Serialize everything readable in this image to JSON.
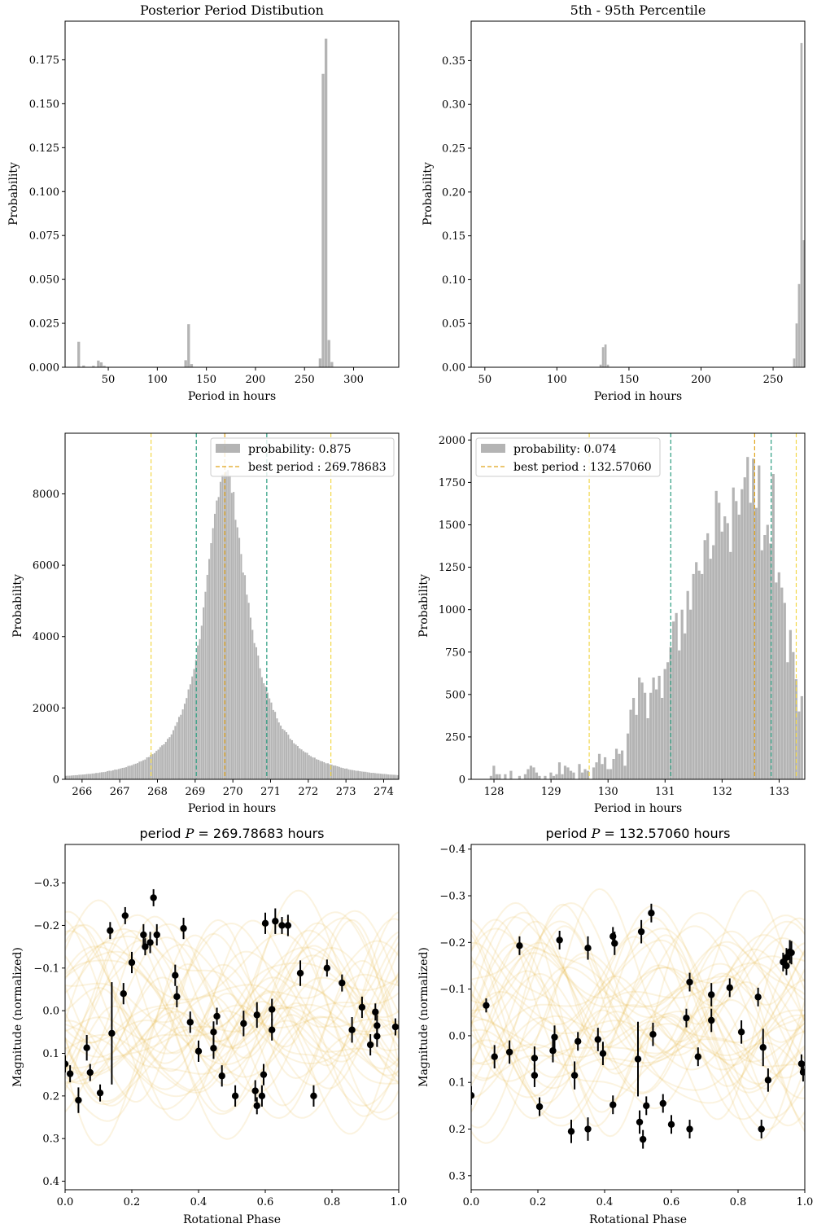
{
  "chart_data": [
    {
      "id": "p1",
      "type": "bar",
      "title": "Posterior Period Distibution",
      "xlabel": "Period in hours",
      "ylabel": "Probability",
      "xlim": [
        6,
        346
      ],
      "ylim": [
        0,
        0.197
      ],
      "xticks": [
        50,
        100,
        150,
        200,
        250,
        300
      ],
      "yticks": [
        0,
        0.025,
        0.05,
        0.075,
        0.1,
        0.125,
        0.15,
        0.175
      ],
      "ytick_labels": [
        "0.000",
        "0.025",
        "0.050",
        "0.075",
        "0.100",
        "0.125",
        "0.150",
        "0.175"
      ],
      "bin_width": 3.0,
      "bins": [
        [
          20,
          0.0145
        ],
        [
          25,
          0.001
        ],
        [
          35,
          0.0008
        ],
        [
          40,
          0.0038
        ],
        [
          43,
          0.0028
        ],
        [
          46,
          0.0008
        ],
        [
          129,
          0.004
        ],
        [
          132,
          0.0245
        ],
        [
          135,
          0.0018
        ],
        [
          266,
          0.005
        ],
        [
          269,
          0.167
        ],
        [
          272,
          0.187
        ],
        [
          275,
          0.0155
        ],
        [
          278,
          0.003
        ]
      ]
    },
    {
      "id": "p2",
      "type": "bar",
      "title": "5th - 95th Percentile",
      "xlabel": "Period in hours",
      "ylabel": "Probability",
      "xlim": [
        40.5,
        272
      ],
      "ylim": [
        0,
        0.395
      ],
      "xticks": [
        50,
        100,
        150,
        200,
        250
      ],
      "yticks": [
        0,
        0.05,
        0.1,
        0.15,
        0.2,
        0.25,
        0.3,
        0.35
      ],
      "ytick_labels": [
        "0.00",
        "0.05",
        "0.10",
        "0.15",
        "0.20",
        "0.25",
        "0.30",
        "0.35"
      ],
      "bin_width": 1.7,
      "bins": [
        [
          130.4,
          0.003
        ],
        [
          132.1,
          0.023
        ],
        [
          133.8,
          0.026
        ],
        [
          135.5,
          0.003
        ],
        [
          264.7,
          0.01
        ],
        [
          266.4,
          0.05
        ],
        [
          268.1,
          0.095
        ],
        [
          269.8,
          0.37
        ],
        [
          271.5,
          0.145
        ]
      ]
    },
    {
      "id": "p3",
      "type": "bar",
      "title": "",
      "xlabel": "Period in hours",
      "ylabel": "Probability",
      "xlim": [
        265.55,
        274.4
      ],
      "ylim": [
        0,
        9700
      ],
      "xticks": [
        266,
        267,
        268,
        269,
        270,
        271,
        272,
        273,
        274
      ],
      "yticks": [
        0,
        2000,
        4000,
        6000,
        8000
      ],
      "bin_width": 0.05,
      "peak": 269.78683,
      "peak_value": 8700,
      "legend": {
        "position": "upper right",
        "bar_label": "probability: 0.875",
        "line_label": "best period : 269.78683"
      },
      "vlines": [
        {
          "x": 267.83,
          "color": "#f2d84a"
        },
        {
          "x": 269.03,
          "color": "#2a9d80"
        },
        {
          "x": 269.78683,
          "color": "#e0a319"
        },
        {
          "x": 270.9,
          "color": "#2a9d80"
        },
        {
          "x": 272.6,
          "color": "#f2d84a"
        }
      ]
    },
    {
      "id": "p4",
      "type": "bar",
      "title": "",
      "xlabel": "Period in hours",
      "ylabel": "Probability",
      "xlim": [
        127.6,
        133.45
      ],
      "ylim": [
        0,
        2040
      ],
      "xticks": [
        128,
        129,
        130,
        131,
        132,
        133
      ],
      "yticks": [
        0,
        250,
        500,
        750,
        1000,
        1250,
        1500,
        1750,
        2000
      ],
      "bin_width": 0.05,
      "legend": {
        "position": "upper left",
        "bar_label": "probability: 0.074",
        "line_label": "best period : 132.57060"
      },
      "bins": [
        [
          127.95,
          20
        ],
        [
          128.0,
          80
        ],
        [
          128.05,
          30
        ],
        [
          128.1,
          30
        ],
        [
          128.2,
          30
        ],
        [
          128.3,
          50
        ],
        [
          128.45,
          20
        ],
        [
          128.55,
          30
        ],
        [
          128.6,
          60
        ],
        [
          128.65,
          80
        ],
        [
          128.7,
          70
        ],
        [
          128.75,
          40
        ],
        [
          128.8,
          20
        ],
        [
          128.9,
          20
        ],
        [
          129.0,
          40
        ],
        [
          129.05,
          20
        ],
        [
          129.1,
          30
        ],
        [
          129.15,
          100
        ],
        [
          129.2,
          30
        ],
        [
          129.25,
          80
        ],
        [
          129.3,
          70
        ],
        [
          129.35,
          50
        ],
        [
          129.4,
          40
        ],
        [
          129.5,
          90
        ],
        [
          129.55,
          40
        ],
        [
          129.6,
          60
        ],
        [
          129.65,
          50
        ],
        [
          129.75,
          70
        ],
        [
          129.8,
          100
        ],
        [
          129.85,
          150
        ],
        [
          129.9,
          90
        ],
        [
          129.95,
          130
        ],
        [
          130.0,
          60
        ],
        [
          130.05,
          60
        ],
        [
          130.1,
          120
        ],
        [
          130.15,
          180
        ],
        [
          130.2,
          150
        ],
        [
          130.25,
          170
        ],
        [
          130.3,
          80
        ],
        [
          130.35,
          270
        ],
        [
          130.4,
          410
        ],
        [
          130.45,
          480
        ],
        [
          130.5,
          380
        ],
        [
          130.55,
          600
        ],
        [
          130.6,
          570
        ],
        [
          130.65,
          510
        ],
        [
          130.7,
          360
        ],
        [
          130.75,
          510
        ],
        [
          130.8,
          600
        ],
        [
          130.85,
          530
        ],
        [
          130.9,
          610
        ],
        [
          130.95,
          480
        ],
        [
          131.0,
          650
        ],
        [
          131.05,
          690
        ],
        [
          131.1,
          780
        ],
        [
          131.15,
          930
        ],
        [
          131.2,
          980
        ],
        [
          131.25,
          760
        ],
        [
          131.3,
          1000
        ],
        [
          131.35,
          860
        ],
        [
          131.4,
          1110
        ],
        [
          131.45,
          1000
        ],
        [
          131.5,
          1210
        ],
        [
          131.55,
          1280
        ],
        [
          131.6,
          1230
        ],
        [
          131.65,
          1210
        ],
        [
          131.7,
          1410
        ],
        [
          131.75,
          1450
        ],
        [
          131.8,
          1300
        ],
        [
          131.85,
          1380
        ],
        [
          131.9,
          1700
        ],
        [
          131.95,
          1630
        ],
        [
          132.0,
          1460
        ],
        [
          132.05,
          1550
        ],
        [
          132.1,
          1510
        ],
        [
          132.15,
          1340
        ],
        [
          132.2,
          1720
        ],
        [
          132.25,
          1640
        ],
        [
          132.3,
          1560
        ],
        [
          132.35,
          1710
        ],
        [
          132.4,
          1780
        ],
        [
          132.45,
          1900
        ],
        [
          132.5,
          1630
        ],
        [
          132.55,
          1890
        ],
        [
          132.6,
          1600
        ],
        [
          132.65,
          1850
        ],
        [
          132.7,
          1350
        ],
        [
          132.75,
          1440
        ],
        [
          132.8,
          1500
        ],
        [
          132.85,
          1390
        ],
        [
          132.9,
          1800
        ],
        [
          132.95,
          1160
        ],
        [
          133.0,
          1220
        ],
        [
          133.05,
          1130
        ],
        [
          133.1,
          1040
        ],
        [
          133.15,
          690
        ],
        [
          133.2,
          880
        ],
        [
          133.25,
          750
        ],
        [
          133.3,
          590
        ],
        [
          133.35,
          400
        ],
        [
          133.4,
          490
        ]
      ],
      "vlines": [
        {
          "x": 129.67,
          "color": "#f2d84a"
        },
        {
          "x": 131.1,
          "color": "#2a9d80"
        },
        {
          "x": 132.5706,
          "color": "#e0a319"
        },
        {
          "x": 132.86,
          "color": "#2a9d80"
        },
        {
          "x": 133.3,
          "color": "#f2d84a"
        }
      ]
    },
    {
      "id": "p5",
      "type": "scatter",
      "title_prefix": "period ",
      "title_var": "P",
      "title_rest": " = 269.78683 hours",
      "xlabel": "Rotational Phase",
      "ylabel": "Magnitude (normalized)",
      "xlim": [
        0,
        1
      ],
      "ylim": [
        0.42,
        -0.39
      ],
      "xticks": [
        0,
        0.2,
        0.4,
        0.6,
        0.8,
        1.0
      ],
      "xtick_labels": [
        "0.0",
        "0.2",
        "0.4",
        "0.6",
        "0.8",
        "1.0"
      ],
      "yticks": [
        -0.3,
        -0.2,
        -0.1,
        0.0,
        0.1,
        0.2,
        0.3,
        0.4
      ],
      "ytick_labels": [
        "−0.3",
        "−0.2",
        "−0.1",
        "0.0",
        "0.1",
        "0.2",
        "0.3",
        "0.4"
      ],
      "curve_count": 40,
      "curve_color": "#e8b33c",
      "points": [
        [
          0.0,
          0.125,
          0.02
        ],
        [
          0.015,
          0.148,
          0.02
        ],
        [
          0.04,
          0.21,
          0.03
        ],
        [
          0.065,
          0.087,
          0.03
        ],
        [
          0.075,
          0.145,
          0.02
        ],
        [
          0.105,
          0.193,
          0.02
        ],
        [
          0.135,
          -0.188,
          0.02
        ],
        [
          0.14,
          0.053,
          0.12
        ],
        [
          0.175,
          -0.04,
          0.025
        ],
        [
          0.18,
          -0.223,
          0.02
        ],
        [
          0.2,
          -0.113,
          0.025
        ],
        [
          0.235,
          -0.178,
          0.025
        ],
        [
          0.24,
          -0.15,
          0.02
        ],
        [
          0.255,
          -0.16,
          0.025
        ],
        [
          0.265,
          -0.265,
          0.02
        ],
        [
          0.275,
          -0.178,
          0.025
        ],
        [
          0.33,
          -0.083,
          0.025
        ],
        [
          0.335,
          -0.033,
          0.025
        ],
        [
          0.355,
          -0.193,
          0.025
        ],
        [
          0.375,
          0.027,
          0.025
        ],
        [
          0.4,
          0.095,
          0.025
        ],
        [
          0.445,
          0.05,
          0.025
        ],
        [
          0.445,
          0.088,
          0.025
        ],
        [
          0.455,
          0.013,
          0.02
        ],
        [
          0.47,
          0.153,
          0.025
        ],
        [
          0.51,
          0.2,
          0.025
        ],
        [
          0.535,
          0.03,
          0.03
        ],
        [
          0.57,
          0.188,
          0.025
        ],
        [
          0.575,
          0.223,
          0.02
        ],
        [
          0.575,
          0.01,
          0.03
        ],
        [
          0.59,
          0.2,
          0.025
        ],
        [
          0.595,
          0.15,
          0.025
        ],
        [
          0.6,
          -0.205,
          0.025
        ],
        [
          0.62,
          0.045,
          0.025
        ],
        [
          0.62,
          -0.003,
          0.025
        ],
        [
          0.63,
          -0.21,
          0.03
        ],
        [
          0.65,
          -0.2,
          0.02
        ],
        [
          0.668,
          -0.2,
          0.025
        ],
        [
          0.705,
          -0.088,
          0.03
        ],
        [
          0.745,
          0.2,
          0.025
        ],
        [
          0.785,
          -0.1,
          0.02
        ],
        [
          0.83,
          -0.065,
          0.02
        ],
        [
          0.86,
          0.045,
          0.03
        ],
        [
          0.89,
          -0.008,
          0.025
        ],
        [
          0.915,
          0.08,
          0.025
        ],
        [
          0.93,
          0.003,
          0.02
        ],
        [
          0.935,
          0.06,
          0.025
        ],
        [
          0.935,
          0.035,
          0.025
        ],
        [
          0.99,
          0.038,
          0.02
        ]
      ]
    },
    {
      "id": "p6",
      "type": "scatter",
      "title_prefix": "period ",
      "title_var": "P",
      "title_rest": " = 132.57060 hours",
      "xlabel": "Rotational Phase",
      "ylabel": "Magnitude (normalized)",
      "xlim": [
        0,
        1
      ],
      "ylim": [
        0.33,
        -0.41
      ],
      "xticks": [
        0,
        0.2,
        0.4,
        0.6,
        0.8,
        1.0
      ],
      "xtick_labels": [
        "0.0",
        "0.2",
        "0.4",
        "0.6",
        "0.8",
        "1.0"
      ],
      "yticks": [
        -0.4,
        -0.3,
        -0.2,
        -0.1,
        0.0,
        0.1,
        0.2,
        0.3
      ],
      "ytick_labels": [
        "−0.4",
        "−0.3",
        "−0.2",
        "−0.1",
        "0.0",
        "0.1",
        "0.2",
        "0.3"
      ],
      "curve_count": 40,
      "curve_color": "#e8b33c",
      "points": [
        [
          0.0,
          0.128,
          0.02
        ],
        [
          0.045,
          -0.065,
          0.015
        ],
        [
          0.07,
          0.045,
          0.025
        ],
        [
          0.115,
          0.035,
          0.025
        ],
        [
          0.145,
          -0.193,
          0.02
        ],
        [
          0.19,
          0.048,
          0.025
        ],
        [
          0.19,
          0.085,
          0.025
        ],
        [
          0.205,
          0.152,
          0.02
        ],
        [
          0.245,
          0.032,
          0.025
        ],
        [
          0.25,
          0.003,
          0.025
        ],
        [
          0.265,
          -0.205,
          0.02
        ],
        [
          0.3,
          0.205,
          0.025
        ],
        [
          0.31,
          0.085,
          0.03
        ],
        [
          0.32,
          0.012,
          0.02
        ],
        [
          0.35,
          -0.188,
          0.025
        ],
        [
          0.35,
          0.2,
          0.025
        ],
        [
          0.38,
          0.008,
          0.025
        ],
        [
          0.395,
          0.038,
          0.025
        ],
        [
          0.425,
          -0.213,
          0.02
        ],
        [
          0.425,
          0.148,
          0.02
        ],
        [
          0.43,
          -0.198,
          0.025
        ],
        [
          0.5,
          0.05,
          0.08
        ],
        [
          0.505,
          0.185,
          0.025
        ],
        [
          0.51,
          -0.223,
          0.025
        ],
        [
          0.515,
          0.222,
          0.02
        ],
        [
          0.525,
          0.15,
          0.02
        ],
        [
          0.54,
          -0.263,
          0.02
        ],
        [
          0.545,
          -0.003,
          0.025
        ],
        [
          0.575,
          0.145,
          0.02
        ],
        [
          0.6,
          0.19,
          0.02
        ],
        [
          0.645,
          -0.038,
          0.02
        ],
        [
          0.655,
          -0.115,
          0.02
        ],
        [
          0.655,
          0.2,
          0.02
        ],
        [
          0.68,
          0.045,
          0.02
        ],
        [
          0.72,
          -0.088,
          0.025
        ],
        [
          0.72,
          -0.033,
          0.025
        ],
        [
          0.775,
          -0.103,
          0.02
        ],
        [
          0.81,
          -0.008,
          0.025
        ],
        [
          0.86,
          -0.083,
          0.02
        ],
        [
          0.87,
          0.2,
          0.02
        ],
        [
          0.875,
          0.025,
          0.04
        ],
        [
          0.89,
          0.095,
          0.025
        ],
        [
          0.935,
          -0.158,
          0.02
        ],
        [
          0.945,
          -0.168,
          0.02
        ],
        [
          0.945,
          -0.15,
          0.02
        ],
        [
          0.955,
          -0.18,
          0.025
        ],
        [
          0.96,
          -0.178,
          0.025
        ],
        [
          0.99,
          0.06,
          0.02
        ],
        [
          0.995,
          0.078,
          0.02
        ]
      ]
    }
  ]
}
